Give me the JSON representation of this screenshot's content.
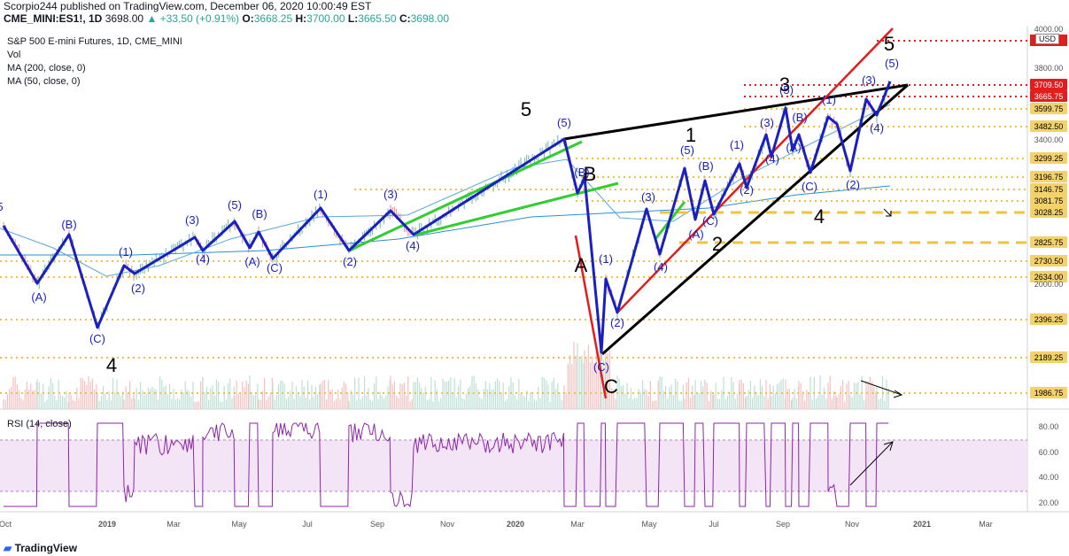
{
  "header": {
    "publisher_line": "Scorpio244 published on TradingView.com, December 06, 2020 10:00:49 EST",
    "symbol": "CME_MINI:ES1!, 1D",
    "last": "3698.00",
    "change": "▲ +33.50 (+0.91%)",
    "open_label": "O:",
    "open": "3668.25",
    "high_label": "H:",
    "high": "3700.00",
    "low_label": "L:",
    "low": "3665.50",
    "close_label": "C:",
    "close": "3698.00"
  },
  "legend": {
    "title": "S&P 500 E-mini Futures, 1D, CME_MINI",
    "vol": "Vol",
    "ma200": "MA (200, close, 0)",
    "ma50": "MA (50, close, 0)"
  },
  "rsi_legend": "RSI (14, close)",
  "currency": "USD",
  "footer": {
    "brand": "TradingView"
  },
  "colors": {
    "wave": "#1a1fc0",
    "wave_label": "#1a1fc0",
    "green": "#32cd32",
    "red": "#e31c1c",
    "black": "#000000",
    "ma": "#2b8fd6",
    "level": "#f0c33c",
    "rsi": "#8e24aa",
    "rsi_band": "#f3e5f5",
    "red_level": "#e31c1c"
  },
  "chart_data": {
    "type": "line",
    "title": "S&P 500 E-mini Futures, 1D, CME_MINI",
    "x_ticks": [
      "Oct",
      "2019",
      "Mar",
      "May",
      "Jul",
      "Sep",
      "Nov",
      "2020",
      "Mar",
      "May",
      "Jul",
      "Sep",
      "Nov",
      "2021",
      "Mar"
    ],
    "price_axis": {
      "ticks": [
        "4000.00",
        "3800.00",
        "3400.00",
        "2000.00"
      ],
      "level_labels": [
        {
          "label": "3709.50",
          "style": "red"
        },
        {
          "label": "3665.75",
          "style": "red"
        },
        {
          "label": "3599.75",
          "style": "gold"
        },
        {
          "label": "3482.50",
          "style": "gold"
        },
        {
          "label": "3299.25",
          "style": "gold"
        },
        {
          "label": "3196.75",
          "style": "gold"
        },
        {
          "label": "3146.75",
          "style": "gold"
        },
        {
          "label": "3081.75",
          "style": "gold"
        },
        {
          "label": "3028.25",
          "style": "gold"
        },
        {
          "label": "2825.75",
          "style": "gold"
        },
        {
          "label": "2730.50",
          "style": "gold"
        },
        {
          "label": "2634.00",
          "style": "gold"
        },
        {
          "label": "2396.25",
          "style": "gold"
        },
        {
          "label": "2189.25",
          "style": "gold"
        },
        {
          "label": "1986.75",
          "style": "gold"
        }
      ]
    },
    "rsi_axis": {
      "ticks": [
        "80.00",
        "60.00",
        "40.00",
        "20.00"
      ],
      "band": [
        30,
        70
      ]
    },
    "wave_labels": [
      "5",
      "(A)",
      "(B)",
      "(C)",
      "4",
      "(1)",
      "(2)",
      "(3)",
      "(4)",
      "(5)",
      "(B)",
      "(A)",
      "(C)",
      "(1)",
      "(2)",
      "(3)",
      "(4)",
      "5",
      "(5)",
      "B",
      "(B)",
      "A",
      "(1)",
      "(2)",
      "(C)",
      "C",
      "(3)",
      "(4)",
      "(5)",
      "(B)",
      "(A)",
      "(C)",
      "1",
      "2",
      "(1)",
      "(2)",
      "(3)",
      "3",
      "(4)",
      "(5)",
      "(B)",
      "(A)",
      "(1)",
      "(C)",
      "(2)",
      "(3)",
      "(4)",
      "4",
      "5",
      "(5)"
    ]
  }
}
